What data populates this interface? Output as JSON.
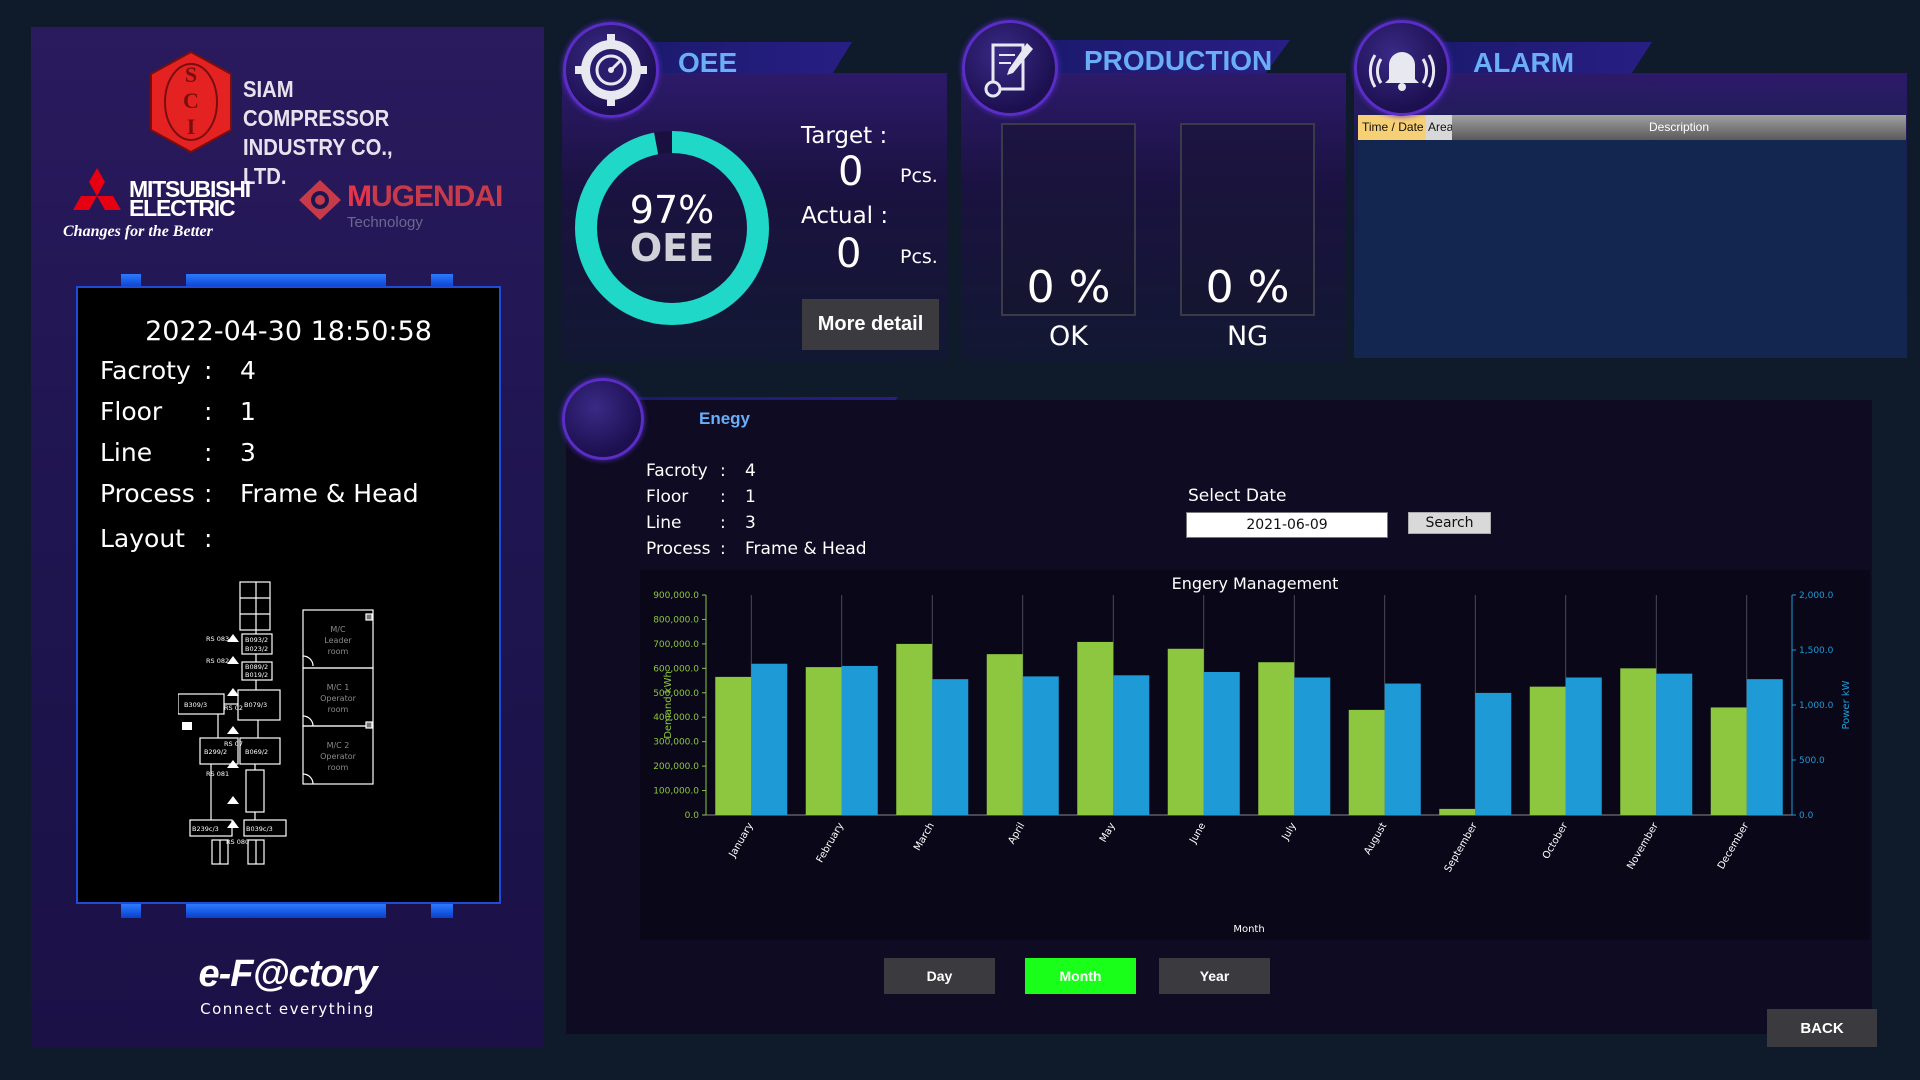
{
  "brand": {
    "sci_letters": [
      "S",
      "C",
      "I"
    ],
    "company_line1": "SIAM COMPRESSOR",
    "company_line2": "INDUSTRY CO., LTD.",
    "mitsubishi_line1": "MITSUBISHI",
    "mitsubishi_line2": "ELECTRIC",
    "mitsubishi_tagline": "Changes for the Better",
    "mugendai_m": "M",
    "mugendai_rest": "UGENDAI",
    "mugendai_sub": "Technology",
    "efactory": "e-F@ctory",
    "efactory_tagline": "Connect everything"
  },
  "info": {
    "datetime": "2022-04-30 18:50:58",
    "rows": [
      {
        "key": "Facroty",
        "colon": ":",
        "value": "4"
      },
      {
        "key": "Floor",
        "colon": ":",
        "value": "1"
      },
      {
        "key": "Line",
        "colon": ":",
        "value": "3"
      },
      {
        "key": "Process",
        "colon": ":",
        "value": "Frame & Head"
      },
      {
        "key": "Layout",
        "colon": ":",
        "value": ""
      }
    ],
    "layout_labels": {
      "rs083": "RS 083",
      "rs082": "RS 082",
      "rs02": "RS 02",
      "rs07": "RS 07",
      "rs081": "RS 081",
      "rs080": "RS 080",
      "b093": "B093/2",
      "b023": "B023/2",
      "b089": "B089/2",
      "b0192": "B019/2",
      "b309": "B309/3",
      "b079": "B079/3",
      "b299": "B299/2",
      "b069": "B069/2",
      "b239": "B239c/3",
      "b039": "B039c/3",
      "room1_l1": "M/C",
      "room1_l2": "Leader",
      "room1_l3": "room",
      "room2_l1": "M/C 1",
      "room2_l2": "Operator",
      "room2_l3": "room",
      "room3_l1": "M/C 2",
      "room3_l2": "Operator",
      "room3_l3": "room"
    }
  },
  "oee": {
    "title": "OEE",
    "percent_text": "97%",
    "percent_value": 97,
    "label": "OEE",
    "target_label": "Target :",
    "target_value": "0",
    "actual_label": "Actual :",
    "actual_value": "0",
    "unit": "Pcs.",
    "more_detail": "More detail",
    "ring_color": "#1fd8c8"
  },
  "production": {
    "title": "PRODUCTION",
    "ok_percent": "0 %",
    "ok_label": "OK",
    "ng_percent": "0 %",
    "ng_label": "NG"
  },
  "alarm": {
    "title": "ALARM",
    "columns": [
      "Time / Date",
      "Area",
      "Description"
    ]
  },
  "energy": {
    "title": "Enegy",
    "rows": [
      {
        "key": "Facroty",
        "colon": ":",
        "value": "4"
      },
      {
        "key": "Floor",
        "colon": ":",
        "value": "1"
      },
      {
        "key": "Line",
        "colon": ":",
        "value": "3"
      },
      {
        "key": "Process",
        "colon": ":",
        "value": "Frame & Head"
      }
    ],
    "select_date_label": "Select Date",
    "date_value": "2021-06-09",
    "search_label": "Search",
    "period_buttons": [
      "Day",
      "Month",
      "Year"
    ],
    "active_period": "Month",
    "active_color": "#19ff19",
    "back_label": "BACK"
  },
  "chart_data": {
    "type": "bar",
    "title": "Engery Management",
    "xlabel": "Month",
    "ylabel": "Demand kWh",
    "y2label": "Power kW",
    "categories": [
      "January",
      "February",
      "March",
      "April",
      "May",
      "June",
      "July",
      "August",
      "September",
      "October",
      "November",
      "December"
    ],
    "series": [
      {
        "name": "Demand kWh",
        "axis": "left",
        "color": "#8dc63f",
        "values": [
          565000,
          605000,
          700000,
          658000,
          708000,
          680000,
          625000,
          430000,
          25000,
          525000,
          600000,
          440000
        ]
      },
      {
        "name": "Power kW",
        "axis": "right",
        "color": "#1e9ad6",
        "values": [
          1375,
          1355,
          1235,
          1260,
          1270,
          1300,
          1250,
          1195,
          1110,
          1250,
          1285,
          1235
        ]
      }
    ],
    "ylim": [
      0,
      900000
    ],
    "yticks": [
      "0.0",
      "100,000.0",
      "200,000.0",
      "300,000.0",
      "400,000.0",
      "500,000.0",
      "600,000.0",
      "700,000.0",
      "800,000.0",
      "900,000.0"
    ],
    "y2lim": [
      0,
      2000
    ],
    "y2ticks": [
      "0.0",
      "500.0",
      "1,000.0",
      "1,500.0",
      "2,000.0"
    ],
    "left_axis_color": "#8dc63f",
    "right_axis_color": "#1e9ad6"
  }
}
